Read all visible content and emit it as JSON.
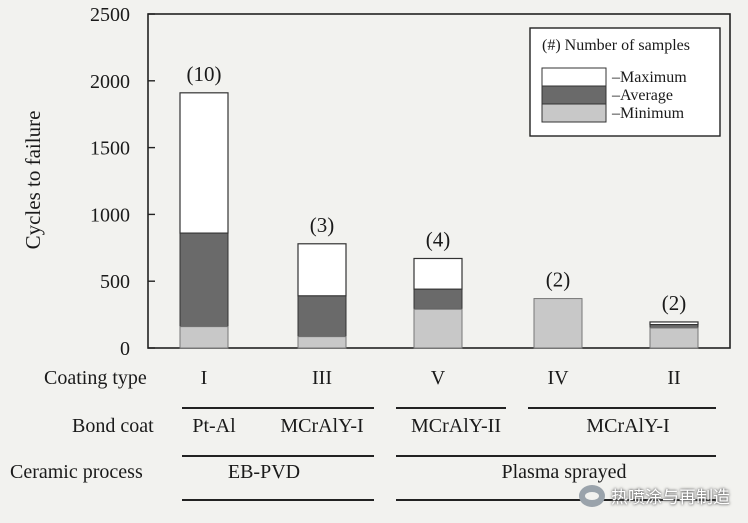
{
  "chart_data": {
    "type": "bar",
    "ylabel": "Cycles to failure",
    "ylim": [
      0,
      2500
    ],
    "yticks": [
      0,
      500,
      1000,
      1500,
      2000,
      2500
    ],
    "categories": [
      "I",
      "III",
      "V",
      "IV",
      "II"
    ],
    "sample_counts": [
      "(10)",
      "(3)",
      "(4)",
      "(2)",
      "(2)"
    ],
    "series": [
      {
        "name": "Minimum",
        "values": [
          160,
          85,
          290,
          370,
          150
        ],
        "color": "#c8c8c8"
      },
      {
        "name": "Average",
        "values": [
          860,
          390,
          440,
          370,
          175
        ],
        "color": "#6a6a6a"
      },
      {
        "name": "Maximum",
        "values": [
          1910,
          780,
          670,
          370,
          195
        ],
        "color": "#ffffff"
      }
    ],
    "legend": {
      "title": "(#) Number of samples",
      "items": [
        "–Maximum",
        "–Average",
        "–Minimum"
      ],
      "placement": "top-right"
    }
  },
  "table": {
    "rows": [
      {
        "label": "Coating type",
        "cells": [
          "I",
          "III",
          "V",
          "IV",
          "II"
        ]
      },
      {
        "label": "Bond coat",
        "cells": [
          "Pt-Al",
          "MCrAlY-I",
          "MCrAlY-II",
          "MCrAlY-I"
        ]
      },
      {
        "label": "Ceramic process",
        "cells": [
          "EB-PVD",
          "Plasma sprayed"
        ]
      }
    ]
  },
  "watermark": {
    "text": "热喷涂与再制造"
  }
}
